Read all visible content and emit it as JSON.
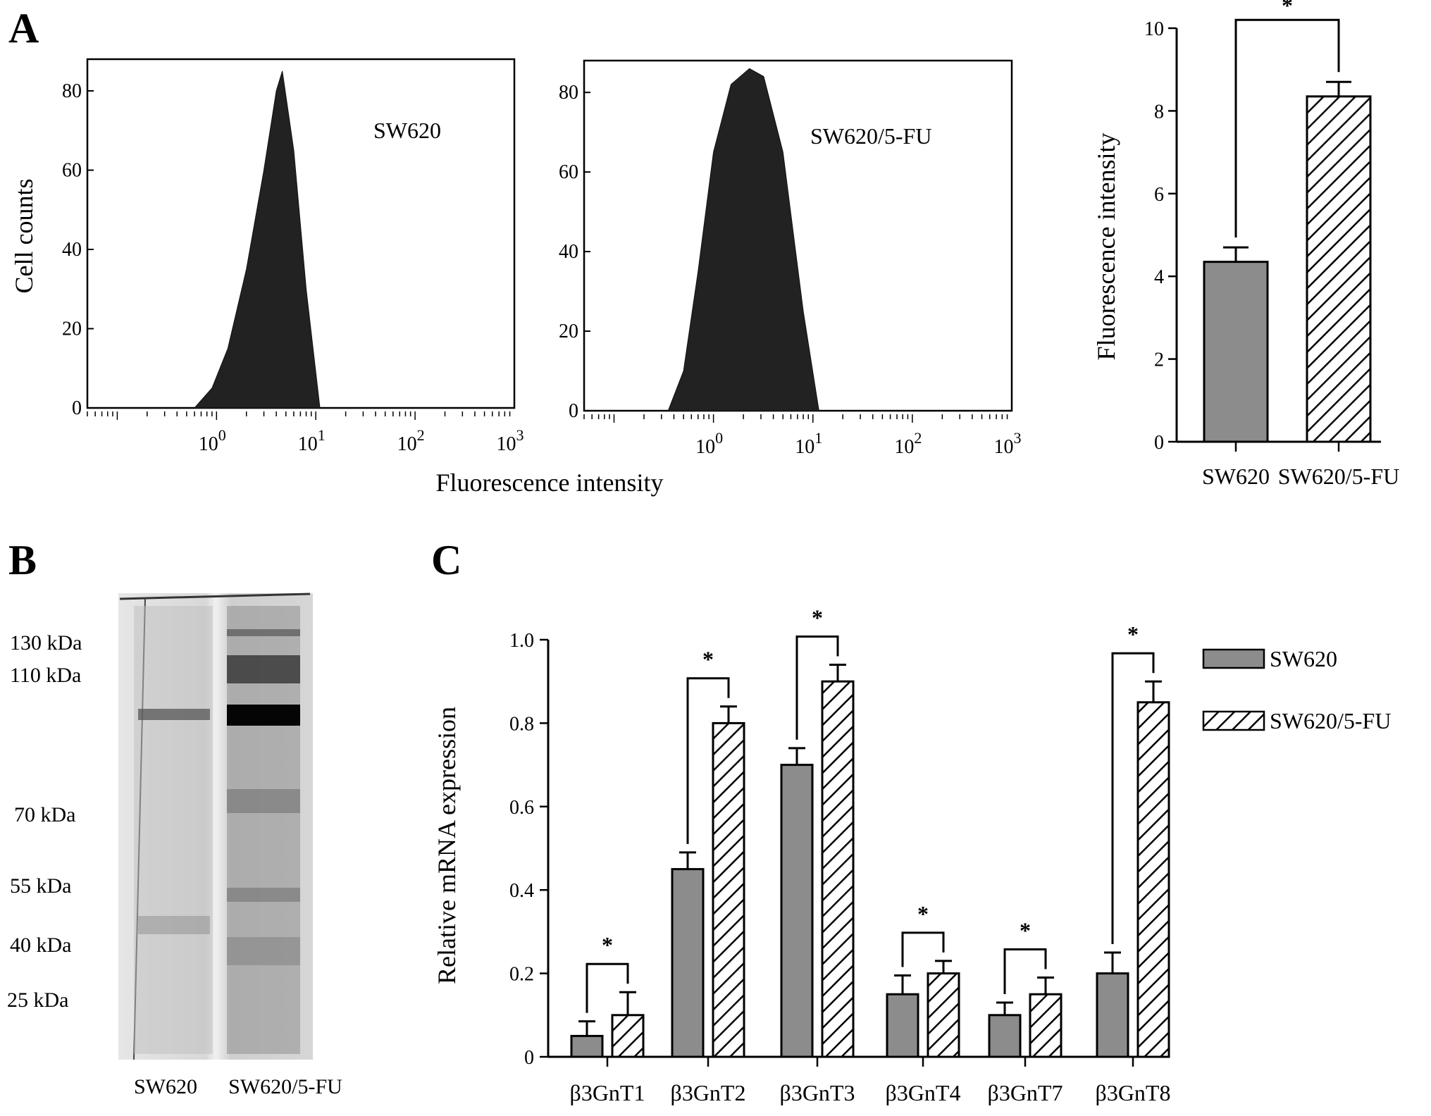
{
  "panel_a": {
    "letter": "A",
    "ylabel": "Cell counts",
    "xlabel": "Fluorescence intensity",
    "y_ticks": [
      "0",
      "20",
      "40",
      "60",
      "80"
    ],
    "x_tick_base": "10",
    "x_tick_exps": [
      "0",
      "1",
      "2",
      "3"
    ],
    "hist_left_label": "SW620",
    "hist_right_label": "SW620/5-FU",
    "bar_ylabel": "Fluorescence intensity",
    "bar_y_ticks": [
      "0",
      "2",
      "4",
      "6",
      "8",
      "10"
    ],
    "significance": "*"
  },
  "panel_b": {
    "letter": "B",
    "markers": [
      "130 kDa",
      "110 kDa",
      "70 kDa",
      "55 kDa",
      "40 kDa",
      "25 kDa"
    ],
    "lanes": [
      "SW620",
      "SW620/5-FU"
    ]
  },
  "panel_c": {
    "letter": "C",
    "ylabel": "Relative mRNA expression",
    "y_ticks": [
      "0",
      "0.2",
      "0.4",
      "0.6",
      "0.8",
      "1.0"
    ],
    "legend": [
      "SW620",
      "SW620/5-FU"
    ],
    "significance": "*"
  },
  "colors": {
    "bar_fill": "#8c8c8c",
    "hatch": "#000000",
    "histogram": "#222222",
    "axis": "#000000"
  },
  "chart_data": [
    {
      "type": "area",
      "x_scale": "log",
      "xlim": [
        0.05,
        1000
      ],
      "ylim": [
        0,
        88
      ],
      "title": "SW620",
      "xlabel": "Fluorescence intensity",
      "ylabel": "Cell counts",
      "x": [
        0.6,
        0.9,
        1.3,
        2.0,
        3.0,
        4.0,
        4.6,
        6.0,
        8.0,
        11.0
      ],
      "y": [
        0,
        5,
        15,
        35,
        60,
        80,
        85,
        65,
        30,
        0
      ]
    },
    {
      "type": "area",
      "x_scale": "log",
      "xlim": [
        0.05,
        1000
      ],
      "ylim": [
        0,
        88
      ],
      "title": "SW620/5-FU",
      "xlabel": "Fluorescence intensity",
      "ylabel": "Cell counts",
      "x": [
        0.35,
        0.5,
        0.7,
        1.0,
        1.5,
        2.3,
        3.2,
        5.0,
        8.0,
        11.5
      ],
      "y": [
        0,
        10,
        35,
        65,
        82,
        86,
        84,
        65,
        25,
        0
      ]
    },
    {
      "type": "bar",
      "categories": [
        "SW620",
        "SW620/5-FU"
      ],
      "values": [
        4.35,
        8.35
      ],
      "errors": [
        0.35,
        0.35
      ],
      "ylabel": "Fluorescence intensity",
      "ylim": [
        0,
        10
      ],
      "significance": [
        [
          "SW620",
          "SW620/5-FU",
          "*"
        ]
      ]
    },
    {
      "type": "bar",
      "categories": [
        "β3GnT1",
        "β3GnT2",
        "β3GnT3",
        "β3GnT4",
        "β3GnT7",
        "β3GnT8"
      ],
      "series": [
        {
          "name": "SW620",
          "values": [
            0.05,
            0.45,
            0.7,
            0.15,
            0.1,
            0.2
          ],
          "errors": [
            0.035,
            0.04,
            0.04,
            0.045,
            0.03,
            0.05
          ]
        },
        {
          "name": "SW620/5-FU",
          "values": [
            0.1,
            0.8,
            0.9,
            0.2,
            0.15,
            0.85
          ],
          "errors": [
            0.055,
            0.04,
            0.04,
            0.03,
            0.04,
            0.05
          ]
        }
      ],
      "ylabel": "Relative mRNA expression",
      "ylim": [
        0,
        1.0
      ],
      "legend_position": "top-right",
      "significance": "*"
    }
  ]
}
